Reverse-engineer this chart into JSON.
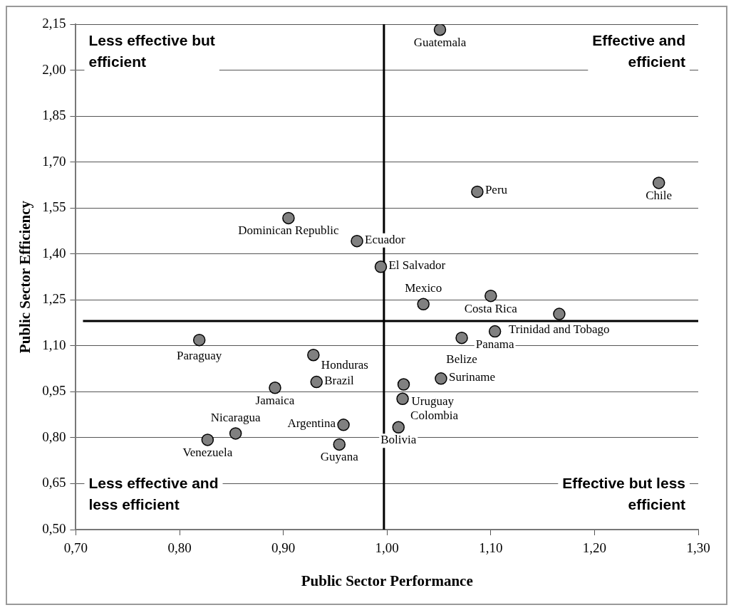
{
  "chart_data": {
    "type": "scatter",
    "xlabel": "Public Sector Performance",
    "ylabel": "Public Sector Efficiency",
    "x": [
      1.051,
      1.087,
      1.262,
      0.905,
      0.971,
      0.994,
      1.1,
      1.035,
      1.166,
      1.072,
      1.104,
      1.016,
      1.052,
      1.015,
      1.011,
      0.819,
      0.929,
      0.932,
      0.892,
      0.958,
      0.954,
      0.854,
      0.827
    ],
    "series": [
      {
        "color": "#808080",
        "values": [
          2.132,
          1.603,
          1.632,
          1.517,
          1.442,
          1.358,
          1.263,
          1.236,
          1.204,
          1.126,
          1.147,
          0.974,
          0.993,
          0.927,
          0.834,
          1.119,
          1.07,
          0.982,
          0.963,
          0.842,
          0.778,
          0.814,
          0.793
        ]
      }
    ],
    "xlim": [
      0.7,
      1.3
    ],
    "xticks": [
      {
        "value": 0.7,
        "label": "0,70"
      },
      {
        "value": 0.8,
        "label": "0,80"
      },
      {
        "value": 0.9,
        "label": "0,90"
      },
      {
        "value": 1.0,
        "label": "1,00"
      },
      {
        "value": 1.1,
        "label": "1,10"
      },
      {
        "value": 1.2,
        "label": "1,20"
      },
      {
        "value": 1.3,
        "label": "1,30"
      }
    ],
    "ylim": [
      0.5,
      2.15
    ],
    "yticks": [
      {
        "value": 0.5,
        "label": "0,50"
      },
      {
        "value": 0.65,
        "label": "0,65"
      },
      {
        "value": 0.8,
        "label": "0,80"
      },
      {
        "value": 0.95,
        "label": "0,95"
      },
      {
        "value": 1.1,
        "label": "1,10"
      },
      {
        "value": 1.25,
        "label": "1,25"
      },
      {
        "value": 1.4,
        "label": "1,40"
      },
      {
        "value": 1.55,
        "label": "1,55"
      },
      {
        "value": 1.7,
        "label": "1,70"
      },
      {
        "value": 1.85,
        "label": "1,85"
      },
      {
        "value": 2.0,
        "label": "2,00"
      },
      {
        "value": 2.15,
        "label": "2,15"
      }
    ],
    "grid": "y",
    "marker": "circle",
    "legend": false,
    "ref_lines": [
      {
        "axis": "x",
        "value": 0.997,
        "color": "#000000"
      },
      {
        "axis": "y",
        "value": 1.181,
        "color": "#000000"
      }
    ],
    "annotations": [
      "Less effective but efficient",
      "Effective and efficient",
      "Less effective and less efficient",
      "Effective but less efficient",
      {
        "text": "Guatemala",
        "x": 1.051,
        "y": 2.132
      },
      {
        "text": "Peru",
        "x": 1.087,
        "y": 1.603
      },
      {
        "text": "Chile",
        "x": 1.262,
        "y": 1.632
      },
      {
        "text": "Dominican Republic",
        "x": 0.905,
        "y": 1.517
      },
      {
        "text": "Ecuador",
        "x": 0.971,
        "y": 1.442
      },
      {
        "text": "El Salvador",
        "x": 0.994,
        "y": 1.358
      },
      {
        "text": "Costa Rica",
        "x": 1.1,
        "y": 1.263
      },
      {
        "text": "Mexico",
        "x": 1.035,
        "y": 1.236
      },
      {
        "text": "Trinidad and Tobago",
        "x": 1.166,
        "y": 1.204
      },
      {
        "text": "Belize",
        "x": 1.072,
        "y": 1.126
      },
      {
        "text": "Panama",
        "x": 1.104,
        "y": 1.147
      },
      {
        "text": "Uruguay",
        "x": 1.016,
        "y": 0.974
      },
      {
        "text": "Suriname",
        "x": 1.052,
        "y": 0.993
      },
      {
        "text": "Colombia",
        "x": 1.015,
        "y": 0.927
      },
      {
        "text": "Bolivia",
        "x": 1.011,
        "y": 0.834
      },
      {
        "text": "Paraguay",
        "x": 0.819,
        "y": 1.119
      },
      {
        "text": "Honduras",
        "x": 0.929,
        "y": 1.07
      },
      {
        "text": "Brazil",
        "x": 0.932,
        "y": 0.982
      },
      {
        "text": "Jamaica",
        "x": 0.892,
        "y": 0.963
      },
      {
        "text": "Argentina",
        "x": 0.958,
        "y": 0.842
      },
      {
        "text": "Guyana",
        "x": 0.954,
        "y": 0.778
      },
      {
        "text": "Nicaragua",
        "x": 0.854,
        "y": 0.814
      },
      {
        "text": "Venezuela",
        "x": 0.827,
        "y": 0.793
      }
    ]
  }
}
